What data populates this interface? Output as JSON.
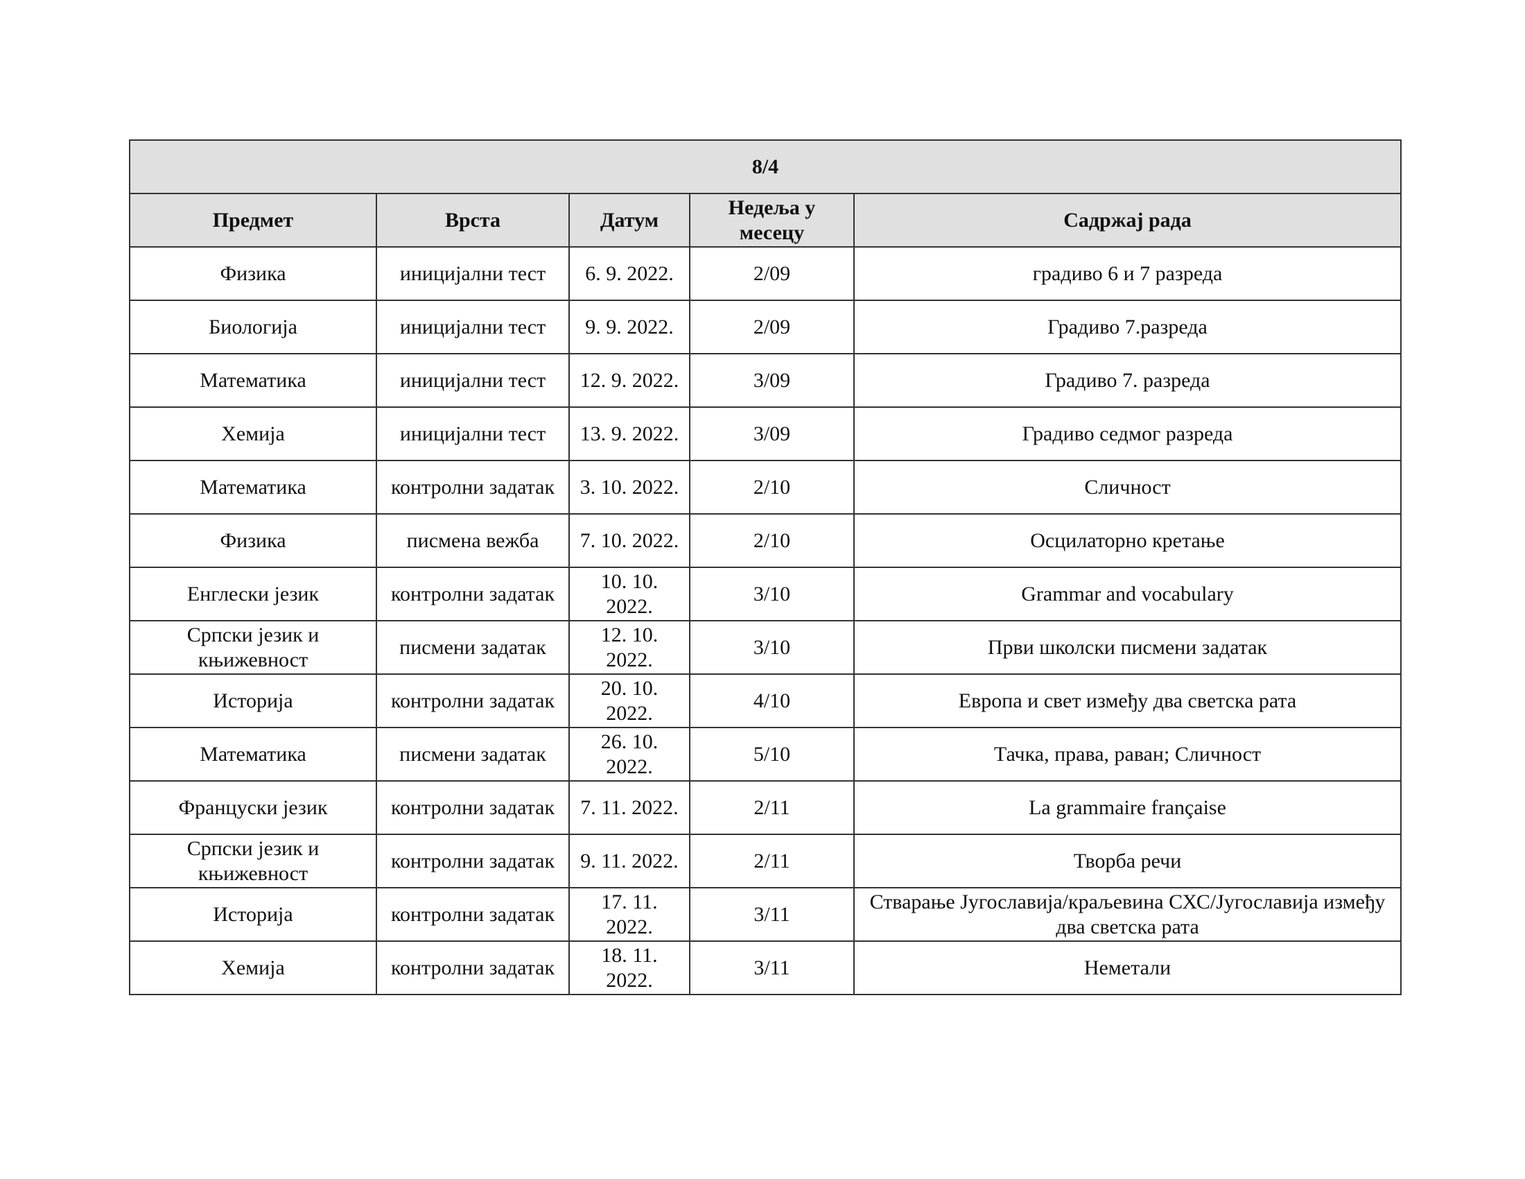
{
  "document": {
    "class_title": "8/4",
    "columns": [
      "Предмет",
      "Врста",
      "Датум",
      "Недеља у месецу",
      "Садржај рада"
    ],
    "rows": [
      [
        "Физика",
        "иницијални тест",
        "6. 9. 2022.",
        "2/09",
        "градиво 6 и 7 разреда"
      ],
      [
        "Биологија",
        "иницијални тест",
        "9. 9. 2022.",
        "2/09",
        "Градиво 7.разреда"
      ],
      [
        "Математика",
        "иницијални тест",
        "12. 9. 2022.",
        "3/09",
        "Градиво 7. разреда"
      ],
      [
        "Хемија",
        "иницијални тест",
        "13. 9. 2022.",
        "3/09",
        "Градиво седмог разреда"
      ],
      [
        "Математика",
        "контролни задатак",
        "3. 10. 2022.",
        "2/10",
        "Сличност"
      ],
      [
        "Физика",
        "писмена вежба",
        "7. 10. 2022.",
        "2/10",
        "Осцилаторно кретање"
      ],
      [
        "Енглески језик",
        "контролни задатак",
        "10. 10. 2022.",
        "3/10",
        "Grammar and vocabulary"
      ],
      [
        "Српски језик и књижевност",
        "писмени задатак",
        "12. 10. 2022.",
        "3/10",
        "Први школски писмени задатак"
      ],
      [
        "Историја",
        "контролни задатак",
        "20. 10. 2022.",
        "4/10",
        "Европа и свет између два светска рата"
      ],
      [
        "Математика",
        "писмени задатак",
        "26. 10. 2022.",
        "5/10",
        "Тачка, права, раван; Сличност"
      ],
      [
        "Француски језик",
        "контролни задатак",
        "7. 11. 2022.",
        "2/11",
        "La grammaire française"
      ],
      [
        "Српски језик и књижевност",
        "контролни задатак",
        "9. 11. 2022.",
        "2/11",
        "Творба речи"
      ],
      [
        "Историја",
        "контролни задатак",
        "17. 11. 2022.",
        "3/11",
        "Стварање Југославија/краљевина СХС/Југославија између два светска рата"
      ],
      [
        "Хемија",
        "контролни задатак",
        "18. 11. 2022.",
        "3/11",
        "Неметали"
      ]
    ]
  }
}
